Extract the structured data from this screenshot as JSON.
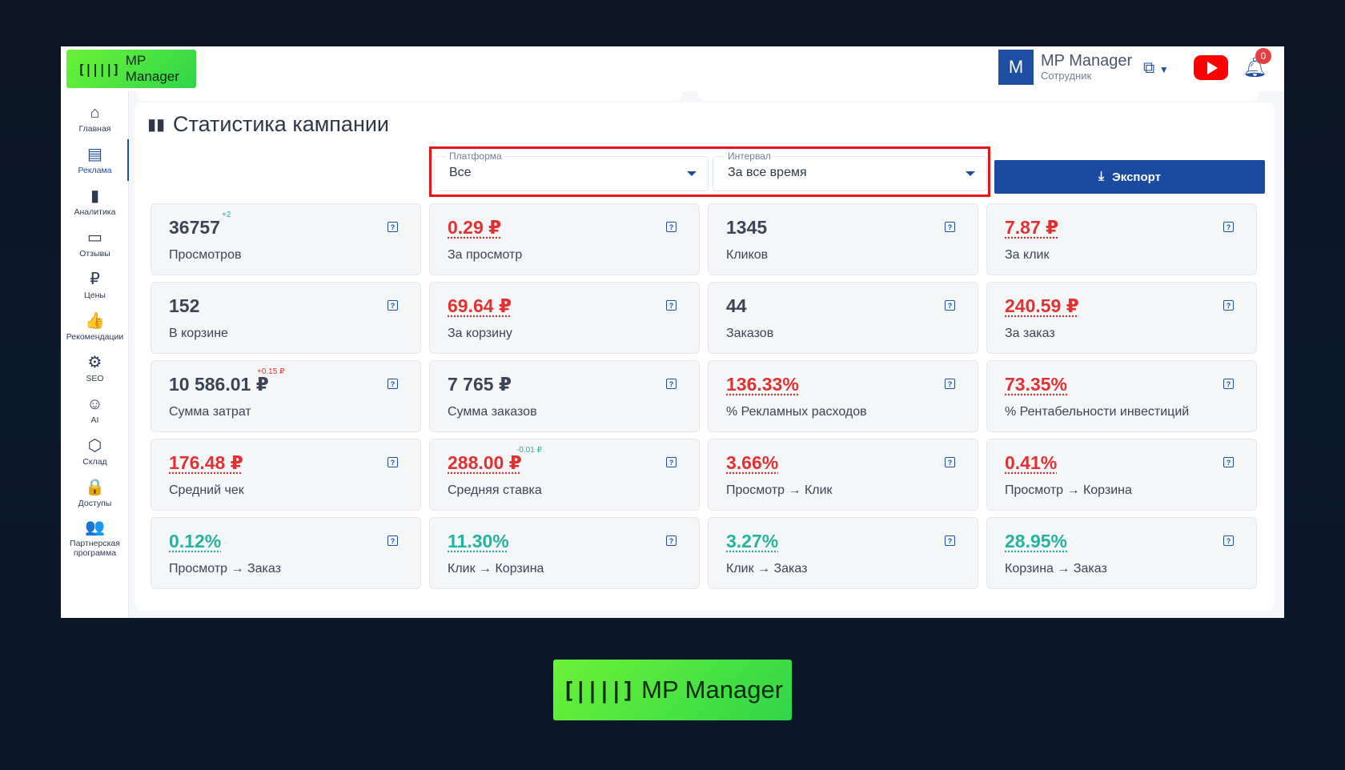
{
  "app": {
    "logo_text": "MP Manager",
    "logo_glyph": "[||||]"
  },
  "header": {
    "user_initial": "M",
    "user_name": "MP Manager",
    "user_role": "Сотрудник",
    "notifications_count": "0",
    "icons": [
      "copy-icon",
      "youtube-icon",
      "bell-icon"
    ]
  },
  "sidebar": {
    "items": [
      {
        "label": "Главная",
        "icon": "home-icon",
        "glyph": "⌂"
      },
      {
        "label": "Реклама",
        "icon": "ads-icon",
        "glyph": "▤",
        "active": true
      },
      {
        "label": "Аналитика",
        "icon": "analytics-icon",
        "glyph": "▮"
      },
      {
        "label": "Отзывы",
        "icon": "reviews-icon",
        "glyph": "▭"
      },
      {
        "label": "Цены",
        "icon": "ruble-icon",
        "glyph": "₽"
      },
      {
        "label": "Рекомендации",
        "icon": "thumbs-up-icon",
        "glyph": "👍"
      },
      {
        "label": "SEO",
        "icon": "seo-icon",
        "glyph": "⚙"
      },
      {
        "label": "AI",
        "icon": "robot-icon",
        "glyph": "☺"
      },
      {
        "label": "Склад",
        "icon": "box-icon",
        "glyph": "⬡"
      },
      {
        "label": "Доступы",
        "icon": "lock-icon",
        "glyph": "🔒"
      },
      {
        "label": "Партнерская программа",
        "icon": "partners-icon",
        "glyph": "👥"
      }
    ]
  },
  "panel": {
    "title": "Статистика кампании",
    "filters": {
      "platform": {
        "label": "Платформа",
        "value": "Все"
      },
      "interval": {
        "label": "Интервал",
        "value": "За все время"
      }
    },
    "export_label": "Экспорт"
  },
  "cards": [
    {
      "value": "36757",
      "caption": "Просмотров",
      "style": "plain",
      "delta": "+2",
      "delta_color": "#23b3a0"
    },
    {
      "value": "0.29 ₽",
      "caption": "За просмотр",
      "style": "red"
    },
    {
      "value": "1345",
      "caption": "Кликов",
      "style": "plain"
    },
    {
      "value": "7.87 ₽",
      "caption": "За клик",
      "style": "red"
    },
    {
      "value": "152",
      "caption": "В корзине",
      "style": "plain"
    },
    {
      "value": "69.64 ₽",
      "caption": "За корзину",
      "style": "red"
    },
    {
      "value": "44",
      "caption": "Заказов",
      "style": "plain"
    },
    {
      "value": "240.59 ₽",
      "caption": "За заказ",
      "style": "red"
    },
    {
      "value": "10 586.01 ₽",
      "caption": "Сумма затрат",
      "style": "plain",
      "delta": "+0.15 ₽",
      "delta_color": "#e03232"
    },
    {
      "value": "7 765 ₽",
      "caption": "Сумма заказов",
      "style": "plain"
    },
    {
      "value": "136.33%",
      "caption": "% Рекламных расходов",
      "style": "red"
    },
    {
      "value": "73.35%",
      "caption": "% Рентабельности инвестиций",
      "style": "red"
    },
    {
      "value": "176.48 ₽",
      "caption": "Средний чек",
      "style": "red"
    },
    {
      "value": "288.00 ₽",
      "caption": "Средняя ставка",
      "style": "red",
      "delta": "-0.01 ₽",
      "delta_color": "#23b3a0"
    },
    {
      "value": "3.66%",
      "caption": "Просмотр → Клик",
      "style": "red"
    },
    {
      "value": "0.41%",
      "caption": "Просмотр → Корзина",
      "style": "red"
    },
    {
      "value": "0.12%",
      "caption": "Просмотр → Заказ",
      "style": "teal"
    },
    {
      "value": "11.30%",
      "caption": "Клик → Корзина",
      "style": "teal"
    },
    {
      "value": "3.27%",
      "caption": "Клик → Заказ",
      "style": "teal"
    },
    {
      "value": "28.95%",
      "caption": "Корзина → Заказ",
      "style": "teal"
    }
  ],
  "footer_logo": {
    "text": "MP Manager",
    "glyph": "[||||]"
  },
  "colors": {
    "brand_green": "#4be33f",
    "primary_blue": "#1a4ba0",
    "negative_red": "#e03232",
    "positive_teal": "#23b3a0",
    "highlight_frame": "#e8141a"
  }
}
